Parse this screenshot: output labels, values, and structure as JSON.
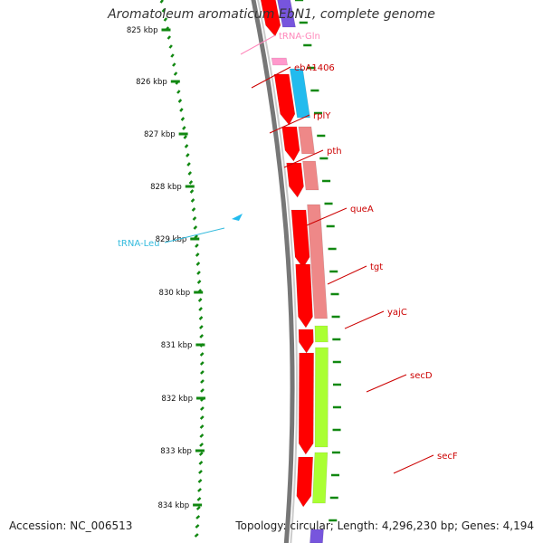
{
  "title": "Aromatoleum aromaticum EbN1, complete genome",
  "footer": {
    "accession": "Accession: NC_006513",
    "summary": "Topology: circular; Length: 4,296,230 bp; Genes: 4,194"
  },
  "colors": {
    "cds": "#ff0000",
    "trna": "#ff99cc",
    "rrna_like": "#22bbee",
    "gene_pale": "#ee8888",
    "gene_lime": "#aaff33",
    "gene_purple": "#7755dd",
    "ticks": "#118811",
    "label_red": "#cc0000",
    "label_pink": "#ff88bb",
    "label_cyan": "#33bbdd"
  },
  "kbp_labels": [
    "825 kbp",
    "826 kbp",
    "827 kbp",
    "828 kbp",
    "829 kbp",
    "830 kbp",
    "831 kbp",
    "832 kbp",
    "833 kbp",
    "834 kbp"
  ],
  "gene_labels": [
    {
      "name": "tRNA-Gln",
      "color": "label_pink"
    },
    {
      "name": "ebA1406",
      "color": "label_red"
    },
    {
      "name": "rplY",
      "color": "label_red"
    },
    {
      "name": "pth",
      "color": "label_red"
    },
    {
      "name": "queA",
      "color": "label_red"
    },
    {
      "name": "tgt",
      "color": "label_red"
    },
    {
      "name": "yajC",
      "color": "label_red"
    },
    {
      "name": "secD",
      "color": "label_red"
    },
    {
      "name": "secF",
      "color": "label_red"
    },
    {
      "name": "tRNA-Leu",
      "color": "label_cyan"
    }
  ]
}
